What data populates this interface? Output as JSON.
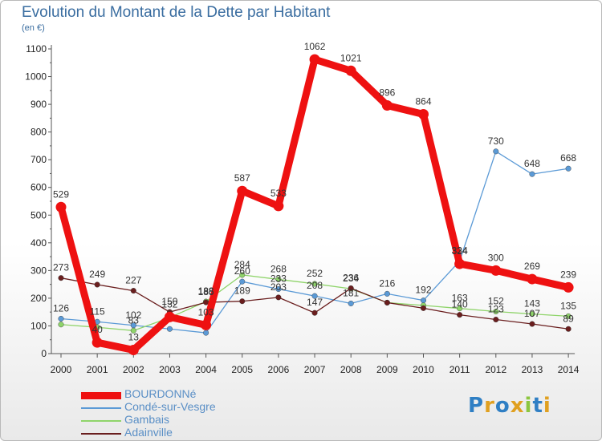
{
  "title": "Evolution du Montant de la Dette par Habitant",
  "subtitle": "(en €)",
  "logo": "Proxiti",
  "chart_data": {
    "type": "line",
    "title": "Evolution du Montant de la Dette par Habitant",
    "subtitle": "(en €)",
    "x": [
      "2000",
      "2001",
      "2002",
      "2003",
      "2004",
      "2005",
      "2006",
      "2007",
      "2008",
      "2009",
      "2010",
      "2011",
      "2012",
      "2013",
      "2014"
    ],
    "y_ticks": [
      "0",
      "100",
      "200",
      "300",
      "400",
      "500",
      "600",
      "700",
      "800",
      "900",
      "1000",
      "1100"
    ],
    "ylim": [
      0,
      1100
    ],
    "grid": false,
    "legend_position": "bottom-left",
    "series": [
      {
        "name": "BOURDONNé",
        "color": "#ee1111",
        "values": [
          529,
          40,
          13,
          132,
          103,
          587,
          533,
          1062,
          1021,
          896,
          864,
          324,
          300,
          269,
          239
        ]
      },
      {
        "name": "Condé-sur-Vesgre",
        "color": "#5b9ad6",
        "values": [
          126,
          115,
          102,
          89,
          75,
          260,
          233,
          208,
          181,
          216,
          192,
          334,
          730,
          648,
          668
        ]
      },
      {
        "name": "Gambais",
        "color": "#8fd46a",
        "values": [
          105,
          95,
          83,
          130,
          188,
          284,
          268,
          252,
          234,
          184,
          174,
          163,
          152,
          143,
          135
        ]
      },
      {
        "name": "Adainville",
        "color": "#6a1e1e",
        "values": [
          273,
          249,
          227,
          150,
          185,
          189,
          203,
          147,
          236,
          184,
          164,
          140,
          123,
          107,
          89
        ]
      }
    ],
    "data_labels": [
      [
        "529",
        "40",
        "13",
        "132",
        "103",
        "587",
        "533",
        "1062",
        "1021",
        "896",
        "864",
        "324",
        "300",
        "269",
        "239"
      ],
      [
        "126",
        "115",
        "102",
        "",
        "",
        "260",
        "233",
        "208",
        "181",
        "216",
        "192",
        "334",
        "730",
        "648",
        "668"
      ],
      [
        "",
        "",
        "83",
        "",
        "188",
        "284",
        "268",
        "252",
        "234",
        "",
        "",
        "163",
        "152",
        "143",
        "135"
      ],
      [
        "273",
        "249",
        "227",
        "150",
        "185",
        "189",
        "203",
        "147",
        "236",
        "",
        "",
        "140",
        "123",
        "107",
        "89"
      ]
    ]
  }
}
